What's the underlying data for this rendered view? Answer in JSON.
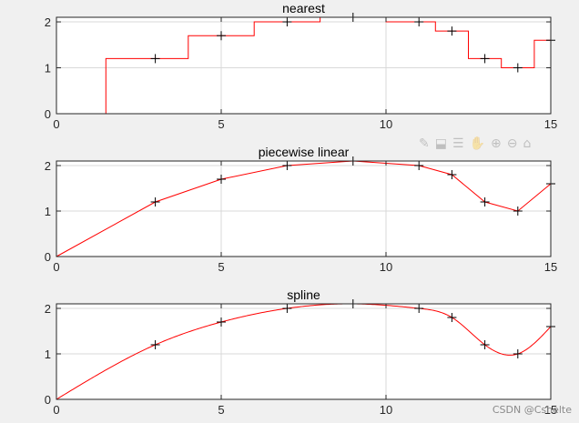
{
  "window": {
    "background": "#f0f0f0"
  },
  "toolbar": {
    "icons": [
      "edit-icon",
      "export-icon",
      "brush-icon",
      "pan-icon",
      "zoom-in-icon",
      "zoom-out-icon",
      "home-icon"
    ],
    "glyphs": [
      "✎",
      "⬓",
      "☰",
      "✋",
      "⊕",
      "⊖",
      "⌂"
    ]
  },
  "watermark": "CSDN @Cshelte",
  "colors": {
    "line": "#ff0000",
    "marker": "#000000",
    "grid": "#d9d9d9",
    "axes_bg": "#ffffff",
    "axes_edge": "#262626"
  },
  "chart_data": [
    {
      "type": "line",
      "title": "nearest",
      "xlim": [
        0,
        15
      ],
      "ylim": [
        0,
        2.1
      ],
      "xticks": [
        0,
        5,
        10,
        15
      ],
      "yticks": [
        0,
        1,
        2
      ],
      "grid": true,
      "markers": {
        "x": [
          3,
          5,
          7,
          9,
          11,
          12,
          13,
          14,
          15
        ],
        "y": [
          1.2,
          1.7,
          2.0,
          2.1,
          2.0,
          1.8,
          1.2,
          1.0,
          1.6
        ],
        "symbol": "+"
      },
      "line": {
        "interpolation": "nearest",
        "x": [
          0,
          1.5,
          1.5,
          4,
          4,
          6,
          6,
          8,
          8,
          10,
          10,
          11.5,
          11.5,
          12.5,
          12.5,
          13.5,
          13.5,
          14.5,
          14.5,
          15
        ],
        "y": [
          0,
          0,
          1.2,
          1.2,
          1.7,
          1.7,
          2.0,
          2.0,
          2.1,
          2.1,
          2.0,
          2.0,
          1.8,
          1.8,
          1.2,
          1.2,
          1.0,
          1.0,
          1.6,
          1.6
        ]
      }
    },
    {
      "type": "line",
      "title": "piecewise linear",
      "xlim": [
        0,
        15
      ],
      "ylim": [
        0,
        2.1
      ],
      "xticks": [
        0,
        5,
        10,
        15
      ],
      "yticks": [
        0,
        1,
        2
      ],
      "grid": true,
      "markers": {
        "x": [
          3,
          5,
          7,
          9,
          11,
          12,
          13,
          14,
          15
        ],
        "y": [
          1.2,
          1.7,
          2.0,
          2.1,
          2.0,
          1.8,
          1.2,
          1.0,
          1.6
        ],
        "symbol": "+"
      },
      "line": {
        "interpolation": "linear",
        "x": [
          0,
          3,
          5,
          7,
          9,
          11,
          12,
          13,
          14,
          15
        ],
        "y": [
          0,
          1.2,
          1.7,
          2.0,
          2.1,
          2.0,
          1.8,
          1.2,
          1.0,
          1.6
        ]
      }
    },
    {
      "type": "line",
      "title": "spline",
      "xlim": [
        0,
        15
      ],
      "ylim": [
        0,
        2.1
      ],
      "xticks": [
        0,
        5,
        10,
        15
      ],
      "yticks": [
        0,
        1,
        2
      ],
      "grid": true,
      "markers": {
        "x": [
          3,
          5,
          7,
          9,
          11,
          12,
          13,
          14,
          15
        ],
        "y": [
          1.2,
          1.7,
          2.0,
          2.1,
          2.0,
          1.8,
          1.2,
          1.0,
          1.6
        ],
        "symbol": "+"
      },
      "line": {
        "interpolation": "spline",
        "x": [
          0,
          3,
          5,
          7,
          9,
          11,
          12,
          13,
          14,
          15
        ],
        "y": [
          0,
          1.2,
          1.7,
          2.0,
          2.1,
          2.0,
          1.8,
          1.2,
          1.0,
          1.6
        ]
      }
    }
  ]
}
